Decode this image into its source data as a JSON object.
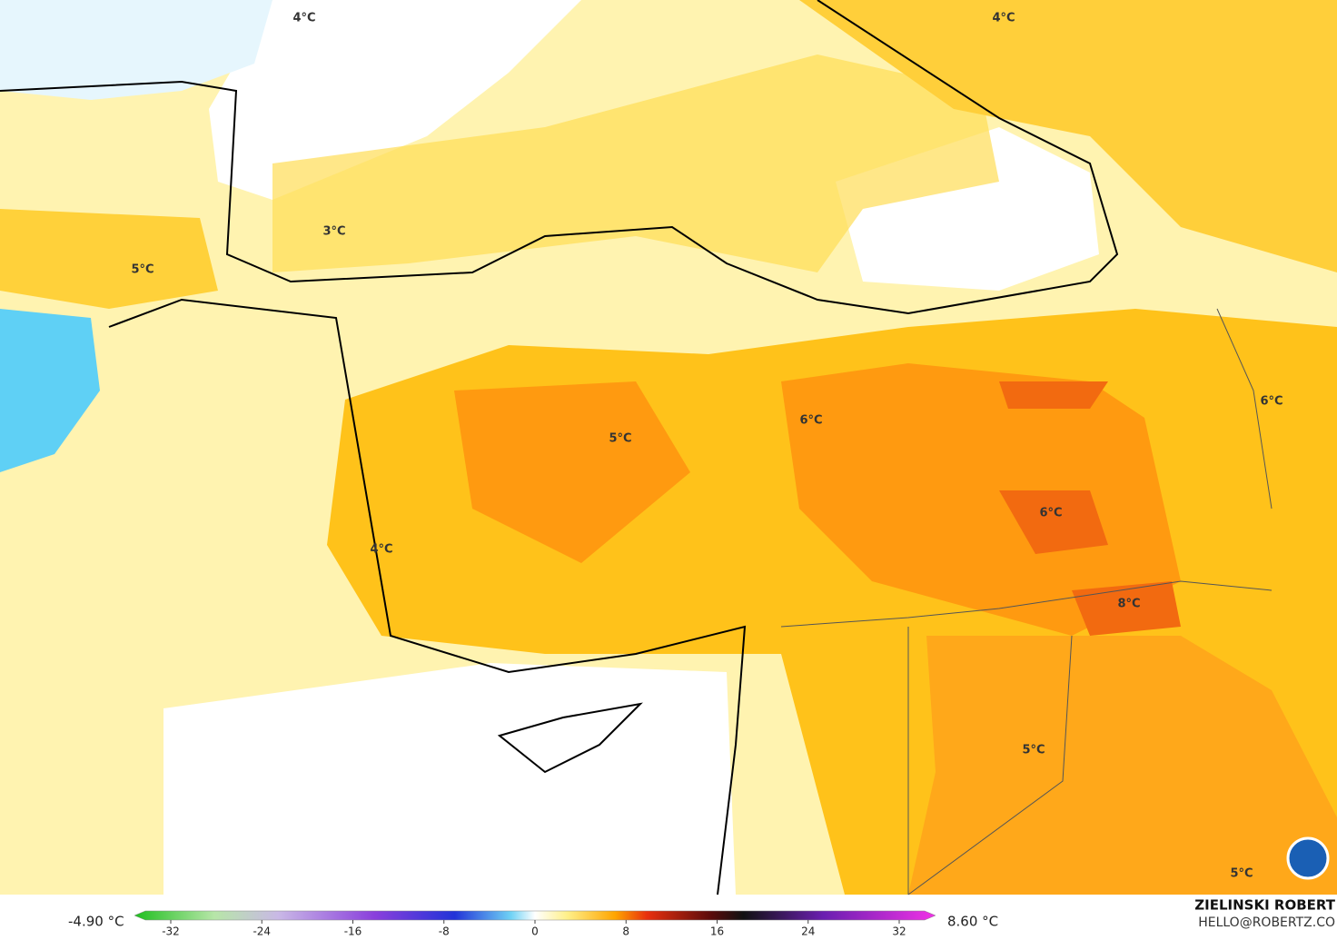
{
  "map": {
    "labels": [
      "4°C",
      "4°C",
      "3°C",
      "5°C",
      "6°C",
      "6°C",
      "5°C",
      "6°C",
      "4°C",
      "8°C",
      "5°C",
      "5°C"
    ],
    "colorbar": {
      "min_label": "-4.90 °C",
      "max_label": "8.60 °C",
      "range": [
        -32,
        32
      ],
      "ticks": [
        -32,
        -24,
        -16,
        -8,
        0,
        8,
        16,
        24,
        32
      ]
    },
    "credit": {
      "name": "ZIELINSKI ROBERT",
      "contact": "HELLO@ROBERTZ.CO"
    }
  }
}
